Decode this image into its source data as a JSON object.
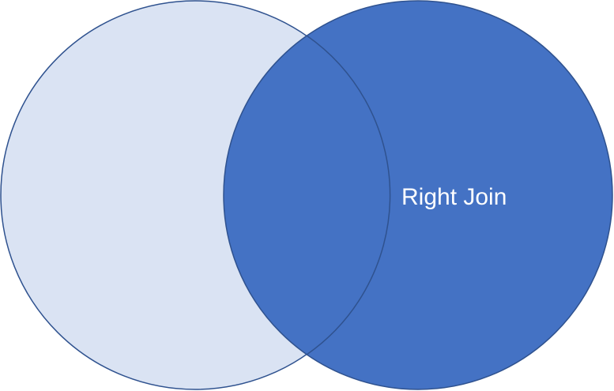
{
  "diagram": {
    "label": "Right Join",
    "colors": {
      "left_fill": "#DAE3F3",
      "right_fill": "#4472C4",
      "outline": "#2F528F",
      "label_text": "#FFFFFF"
    }
  }
}
